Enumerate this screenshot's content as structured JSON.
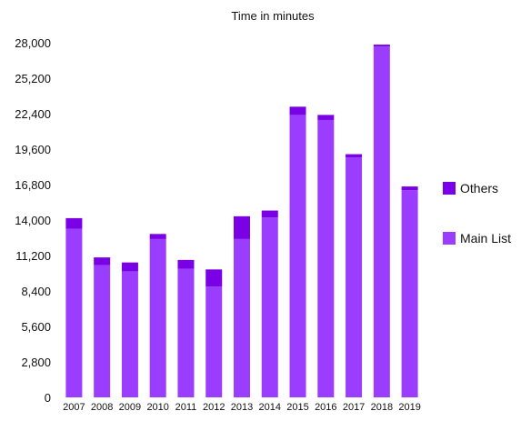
{
  "chart_data": {
    "type": "bar",
    "stacked": true,
    "title": "Time in minutes",
    "xlabel": "",
    "ylabel": "",
    "categories": [
      "2007",
      "2008",
      "2009",
      "2010",
      "2011",
      "2012",
      "2013",
      "2014",
      "2015",
      "2016",
      "2017",
      "2018",
      "2019"
    ],
    "series": [
      {
        "name": "Main List",
        "color": "#9b3dff",
        "values": [
          13300,
          10450,
          9950,
          12500,
          10150,
          8750,
          12500,
          14200,
          22300,
          21900,
          18950,
          27700,
          16350
        ]
      },
      {
        "name": "Others",
        "color": "#7a00e6",
        "values": [
          850,
          600,
          700,
          400,
          700,
          1350,
          1800,
          550,
          650,
          400,
          250,
          150,
          300
        ]
      }
    ],
    "ylim": [
      0,
      28000
    ],
    "yticks": [
      "0",
      "2,800",
      "5,600",
      "8,400",
      "11,200",
      "14,000",
      "16,800",
      "19,600",
      "22,400",
      "25,200",
      "28,000"
    ],
    "grid": false,
    "legend_position": "right",
    "legend_order": [
      "Others",
      "Main List"
    ]
  }
}
